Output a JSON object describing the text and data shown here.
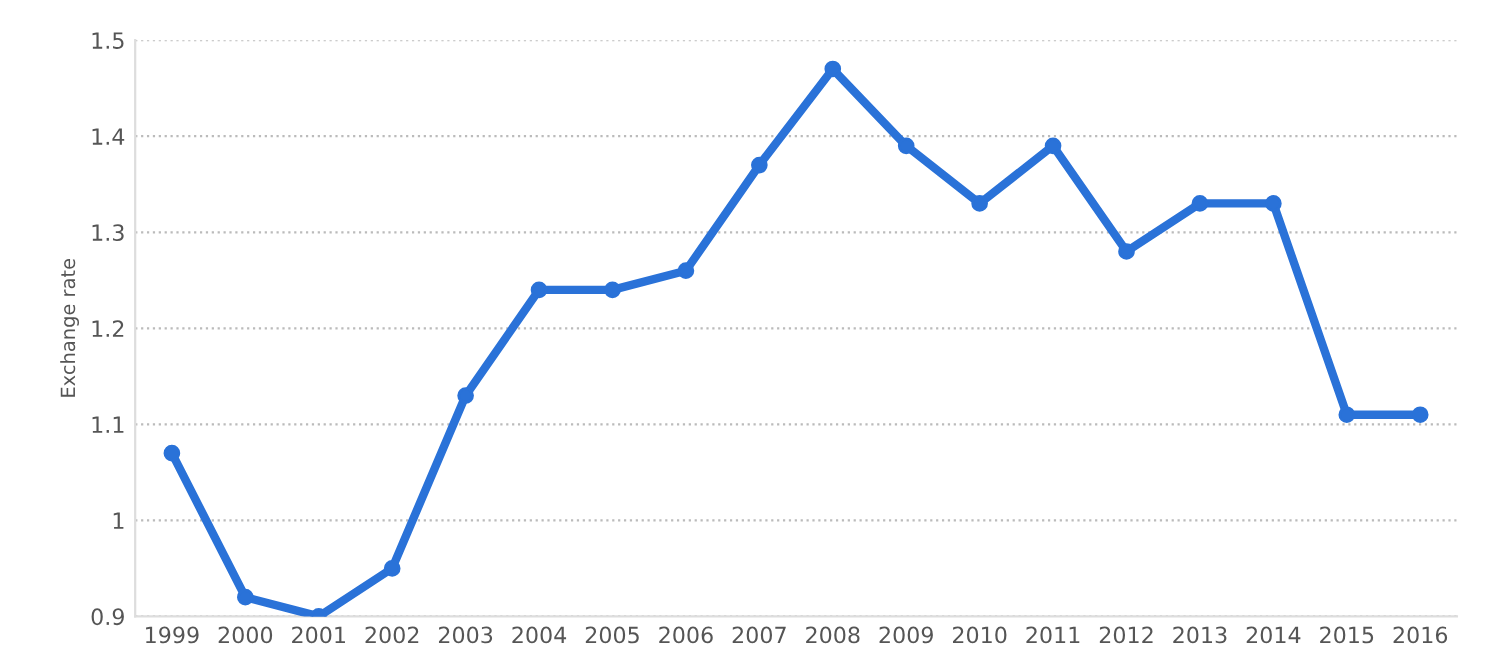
{
  "chart_data": {
    "type": "line",
    "ylabel": "Exchange rate",
    "categories": [
      "1999",
      "2000",
      "2001",
      "2002",
      "2003",
      "2004",
      "2005",
      "2006",
      "2007",
      "2008",
      "2009",
      "2010",
      "2011",
      "2012",
      "2013",
      "2014",
      "2015",
      "2016"
    ],
    "series": [
      {
        "color": "#2a72d8",
        "values": [
          1.07,
          0.92,
          0.9,
          0.95,
          1.13,
          1.24,
          1.24,
          1.26,
          1.37,
          1.47,
          1.39,
          1.33,
          1.39,
          1.28,
          1.33,
          1.33,
          1.11,
          1.11
        ]
      }
    ],
    "ylim": [
      0.9,
      1.5
    ],
    "yticks": [
      0.9,
      1,
      1.1,
      1.2,
      1.3,
      1.4,
      1.5
    ],
    "grid": "y",
    "marker": "circle",
    "line_style": "solid",
    "legend": false
  }
}
